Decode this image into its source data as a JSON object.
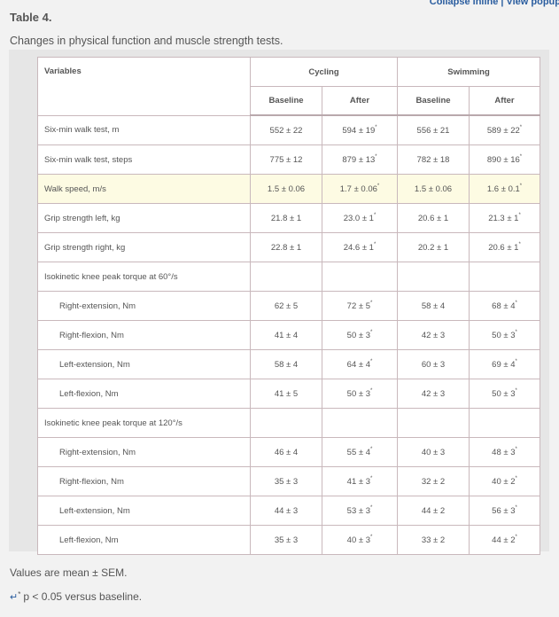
{
  "top_links": {
    "collapse_inline": "Collapse inline",
    "separator": "|",
    "view_popup": "View popup"
  },
  "title": "Table 4.",
  "caption": "Changes in physical function and muscle strength tests.",
  "table": {
    "variables_header": "Variables",
    "groups": [
      "Cycling",
      "Swimming"
    ],
    "subheaders": [
      "Baseline",
      "After",
      "Baseline",
      "After"
    ],
    "rows": [
      {
        "label": "Six-min walk test, m",
        "type": "main",
        "highlight": false,
        "cells": [
          {
            "v": "552 ± 22",
            "sig": ""
          },
          {
            "v": "594 ± 19",
            "sig": "*"
          },
          {
            "v": "556 ± 21",
            "sig": ""
          },
          {
            "v": "589 ± 22",
            "sig": "*"
          }
        ]
      },
      {
        "label": "Six-min walk test, steps",
        "type": "main",
        "highlight": false,
        "cells": [
          {
            "v": "775 ± 12",
            "sig": ""
          },
          {
            "v": "879 ± 13",
            "sig": "*"
          },
          {
            "v": "782 ± 18",
            "sig": ""
          },
          {
            "v": "890 ± 16",
            "sig": "*"
          }
        ]
      },
      {
        "label": "Walk speed, m/s",
        "type": "main",
        "highlight": true,
        "cells": [
          {
            "v": "1.5 ± 0.06",
            "sig": ""
          },
          {
            "v": "1.7 ± 0.06",
            "sig": "*"
          },
          {
            "v": "1.5 ± 0.06",
            "sig": ""
          },
          {
            "v": "1.6 ± 0.1",
            "sig": "*"
          }
        ]
      },
      {
        "label": "Grip strength left, kg",
        "type": "main",
        "highlight": false,
        "cells": [
          {
            "v": "21.8 ± 1",
            "sig": ""
          },
          {
            "v": "23.0 ± 1",
            "sig": "*"
          },
          {
            "v": "20.6 ± 1",
            "sig": ""
          },
          {
            "v": "21.3 ± 1",
            "sig": "*"
          }
        ]
      },
      {
        "label": "Grip strength right, kg",
        "type": "main",
        "highlight": false,
        "cells": [
          {
            "v": "22.8 ± 1",
            "sig": ""
          },
          {
            "v": "24.6 ± 1",
            "sig": "*"
          },
          {
            "v": "20.2 ± 1",
            "sig": ""
          },
          {
            "v": "20.6 ± 1",
            "sig": "*"
          }
        ]
      },
      {
        "label": "Isokinetic knee peak torque at 60°/s",
        "type": "section",
        "highlight": false,
        "cells": []
      },
      {
        "label": "Right-extension, Nm",
        "type": "sub",
        "highlight": false,
        "cells": [
          {
            "v": "62 ± 5",
            "sig": ""
          },
          {
            "v": "72 ± 5",
            "sig": "*"
          },
          {
            "v": "58 ± 4",
            "sig": ""
          },
          {
            "v": "68 ± 4",
            "sig": "*"
          }
        ]
      },
      {
        "label": "Right-flexion, Nm",
        "type": "sub",
        "highlight": false,
        "cells": [
          {
            "v": "41 ± 4",
            "sig": ""
          },
          {
            "v": "50 ± 3",
            "sig": "*"
          },
          {
            "v": "42 ± 3",
            "sig": ""
          },
          {
            "v": "50 ± 3",
            "sig": "*"
          }
        ]
      },
      {
        "label": "Left-extension, Nm",
        "type": "sub",
        "highlight": false,
        "cells": [
          {
            "v": "58 ± 4",
            "sig": ""
          },
          {
            "v": "64 ± 4",
            "sig": "*"
          },
          {
            "v": "60 ± 3",
            "sig": ""
          },
          {
            "v": "69 ± 4",
            "sig": "*"
          }
        ]
      },
      {
        "label": "Left-flexion, Nm",
        "type": "sub",
        "highlight": false,
        "cells": [
          {
            "v": "41 ± 5",
            "sig": ""
          },
          {
            "v": "50 ± 3",
            "sig": "*"
          },
          {
            "v": "42 ± 3",
            "sig": ""
          },
          {
            "v": "50 ± 3",
            "sig": "*"
          }
        ]
      },
      {
        "label": "Isokinetic knee peak torque at 120°/s",
        "type": "section",
        "highlight": false,
        "cells": []
      },
      {
        "label": "Right-extension, Nm",
        "type": "sub",
        "highlight": false,
        "cells": [
          {
            "v": "46 ± 4",
            "sig": ""
          },
          {
            "v": "55 ± 4",
            "sig": "*"
          },
          {
            "v": "40 ± 3",
            "sig": ""
          },
          {
            "v": "48 ± 3",
            "sig": "*"
          }
        ]
      },
      {
        "label": "Right-flexion, Nm",
        "type": "sub",
        "highlight": false,
        "cells": [
          {
            "v": "35 ± 3",
            "sig": ""
          },
          {
            "v": "41 ± 3",
            "sig": "*"
          },
          {
            "v": "32 ± 2",
            "sig": ""
          },
          {
            "v": "40 ± 2",
            "sig": "*"
          }
        ]
      },
      {
        "label": "Left-extension, Nm",
        "type": "sub",
        "highlight": false,
        "cells": [
          {
            "v": "44 ± 3",
            "sig": ""
          },
          {
            "v": "53 ± 3",
            "sig": "*"
          },
          {
            "v": "44 ± 2",
            "sig": ""
          },
          {
            "v": "56 ± 3",
            "sig": "*"
          }
        ]
      },
      {
        "label": "Left-flexion, Nm",
        "type": "sub",
        "highlight": false,
        "cells": [
          {
            "v": "35 ± 3",
            "sig": ""
          },
          {
            "v": "40 ± 3",
            "sig": "*"
          },
          {
            "v": "33 ± 2",
            "sig": ""
          },
          {
            "v": "44 ± 2",
            "sig": "*"
          }
        ]
      }
    ]
  },
  "footnotes": {
    "values_note": "Values are mean ± SEM.",
    "back_icon": "return-arrow-icon",
    "sig_symbol": "*",
    "sig_note": "p < 0.05 versus baseline."
  },
  "colors": {
    "link": "#2a5d9f",
    "highlight_row": "#fdfbe3",
    "border": "#c9b8bc"
  }
}
